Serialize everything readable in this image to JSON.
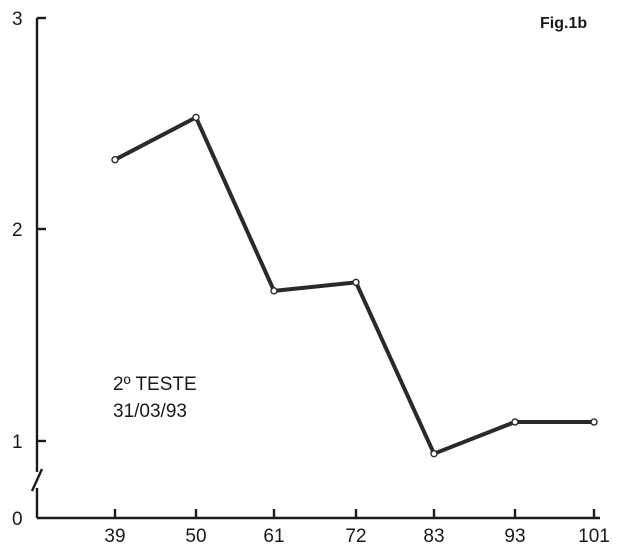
{
  "figure_label": "Fig.1b",
  "annotation": {
    "line1": "2º TESTE",
    "line2": "31/03/93"
  },
  "colors": {
    "line": "#2a2a2a",
    "axis": "#1a1a1a",
    "background": "#ffffff"
  },
  "chart_data": {
    "type": "line",
    "title": "",
    "xlabel": "",
    "ylabel": "",
    "categories": [
      "39",
      "50",
      "61",
      "72",
      "83",
      "93",
      "101"
    ],
    "series": [
      {
        "values": [
          2.33,
          2.53,
          1.71,
          1.75,
          0.94,
          1.09,
          1.09
        ]
      }
    ],
    "yticks": [
      "0",
      "1",
      "2",
      "3"
    ],
    "ylim": [
      0,
      3
    ],
    "y_axis_break": true,
    "grid": false,
    "legend": "none"
  }
}
